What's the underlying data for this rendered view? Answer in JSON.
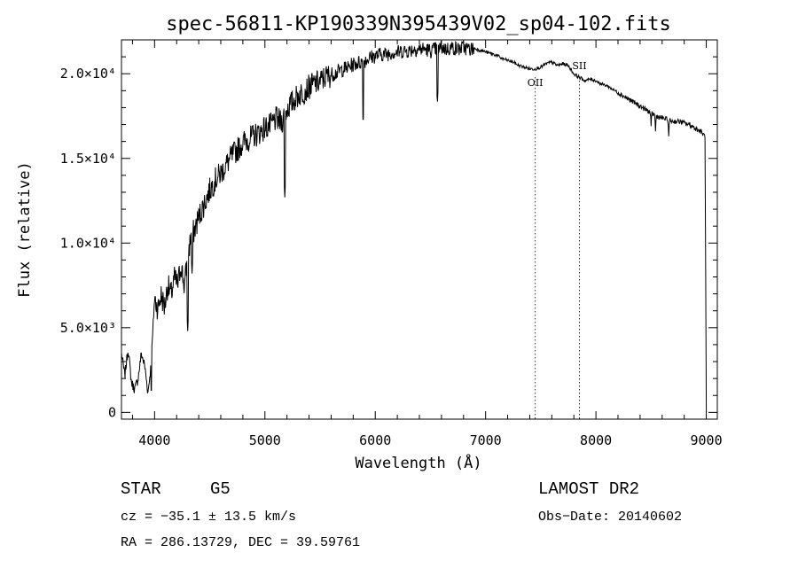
{
  "chart_data": {
    "type": "line",
    "title": "spec-56811-KP190339N395439V02_sp04-102.fits",
    "xlabel": "Wavelength (Å)",
    "ylabel": "Flux (relative)",
    "xlim": [
      3700,
      9100
    ],
    "ylim": [
      -400,
      22000
    ],
    "x_ticks": [
      4000,
      5000,
      6000,
      7000,
      8000,
      9000
    ],
    "y_ticks": [
      {
        "value": 0,
        "label": "0"
      },
      {
        "value": 5000,
        "label": "5.0×10³"
      },
      {
        "value": 10000,
        "label": "1.0×10⁴"
      },
      {
        "value": 15000,
        "label": "1.5×10⁴"
      },
      {
        "value": 20000,
        "label": "2.0×10⁴"
      }
    ],
    "grid": false,
    "series": [
      {
        "x": [
          3700,
          3730,
          3760,
          3790,
          3820,
          3850,
          3880,
          3910,
          3940,
          3970,
          4000,
          4030,
          4060,
          4090,
          4120,
          4150,
          4180,
          4210,
          4240,
          4270,
          4300,
          4330,
          4360,
          4400,
          4450,
          4500,
          4550,
          4600,
          4650,
          4700,
          4750,
          4800,
          4850,
          4900,
          4950,
          5000,
          5050,
          5100,
          5150,
          5200,
          5250,
          5300,
          5350,
          5400,
          5450,
          5500,
          5550,
          5600,
          5650,
          5700,
          5750,
          5800,
          5850,
          5900,
          5950,
          6000,
          6050,
          6100,
          6150,
          6200,
          6250,
          6300,
          6350,
          6400,
          6450,
          6500,
          6550,
          6600,
          6650,
          6700,
          6750,
          6800,
          6850,
          6900,
          6950,
          7000,
          7050,
          7100,
          7150,
          7200,
          7250,
          7300,
          7350,
          7400,
          7450,
          7500,
          7550,
          7600,
          7650,
          7700,
          7750,
          7800,
          7850,
          7900,
          7950,
          8000,
          8050,
          8100,
          8150,
          8200,
          8250,
          8300,
          8350,
          8400,
          8450,
          8500,
          8550,
          8600,
          8650,
          8700,
          8750,
          8800,
          8850,
          8900,
          8950,
          8990,
          9000
        ],
        "y": [
          3500,
          2200,
          3800,
          1800,
          1400,
          2000,
          3500,
          2800,
          1200,
          3000,
          6800,
          6200,
          7000,
          6300,
          7600,
          7000,
          8000,
          7600,
          8800,
          7500,
          9200,
          10500,
          10800,
          11600,
          12400,
          13200,
          13800,
          14200,
          14700,
          15200,
          15600,
          16000,
          16200,
          16400,
          16600,
          16900,
          17000,
          17400,
          17200,
          18000,
          18400,
          18800,
          19000,
          19300,
          19500,
          19600,
          19900,
          20000,
          20100,
          20300,
          20400,
          20600,
          20700,
          20800,
          21000,
          21100,
          21200,
          21200,
          21300,
          21300,
          21400,
          21400,
          21500,
          21500,
          21500,
          21400,
          21500,
          21600,
          21500,
          21600,
          21500,
          21600,
          21500,
          21500,
          21400,
          21300,
          21200,
          21100,
          20900,
          20800,
          20700,
          20500,
          20400,
          20300,
          20300,
          20400,
          20600,
          20700,
          20500,
          20600,
          20500,
          20000,
          19800,
          19600,
          19700,
          19600,
          19400,
          19300,
          19100,
          18900,
          18700,
          18500,
          18300,
          18100,
          17900,
          17700,
          17500,
          17400,
          17300,
          17200,
          17200,
          17100,
          17000,
          16800,
          16600,
          16300,
          0
        ]
      }
    ],
    "absorption_features": [
      {
        "x": 4300,
        "y": 4800
      },
      {
        "x": 4340,
        "y": 8200
      },
      {
        "x": 5180,
        "y": 12700
      },
      {
        "x": 5890,
        "y": 17000
      },
      {
        "x": 6563,
        "y": 18200
      },
      {
        "x": 3970,
        "y": 1000
      },
      {
        "x": 8500,
        "y": 16900
      },
      {
        "x": 8540,
        "y": 16600
      },
      {
        "x": 8660,
        "y": 16300
      }
    ],
    "lines": [
      {
        "label": "OII",
        "x": 7450
      },
      {
        "label": "SII",
        "x": 7850
      }
    ]
  },
  "info": {
    "class": "STAR",
    "subclass": "G5",
    "survey": "LAMOST DR2",
    "cz": "cz = −35.1 ± 13.5 km/s",
    "obs_date": "Obs−Date: 20140602",
    "coords": "RA = 286.13729, DEC =  39.59761"
  }
}
